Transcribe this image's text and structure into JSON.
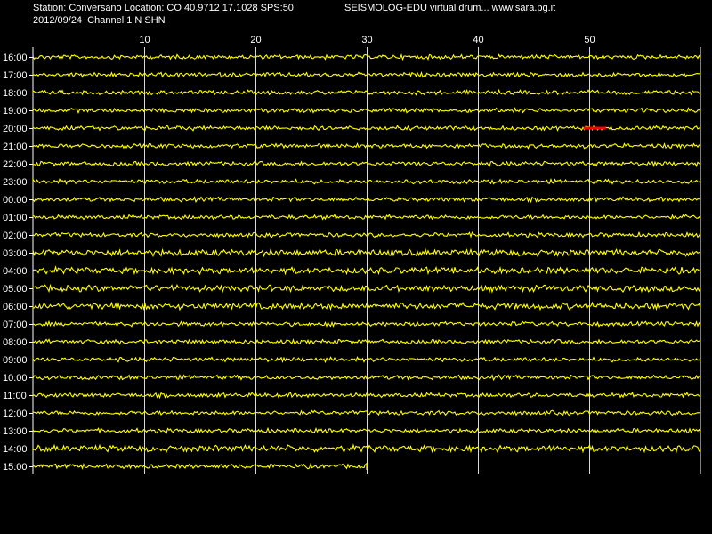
{
  "header": {
    "station_line": "Station: Conversano Location: CO 40.9712 17.1028 SPS:50",
    "title": "SEISMOLOG-EDU virtual drum... www.sara.pg.it",
    "date_line": "2012/09/24  Channel 1 N SHN"
  },
  "chart_data": {
    "type": "line",
    "title": "",
    "xlabel": "",
    "ylabel": "",
    "x_unit_hint": "minutes",
    "x_range": [
      0,
      60
    ],
    "x_ticks": [
      10,
      20,
      30,
      40,
      50
    ],
    "x_tick_labels": [
      "10",
      "20",
      "30",
      "40",
      "50"
    ],
    "grid": true,
    "hours": [
      "16:00",
      "17:00",
      "18:00",
      "19:00",
      "20:00",
      "21:00",
      "22:00",
      "23:00",
      "00:00",
      "01:00",
      "02:00",
      "03:00",
      "04:00",
      "05:00",
      "06:00",
      "07:00",
      "08:00",
      "09:00",
      "10:00",
      "11:00",
      "12:00",
      "13:00",
      "14:00",
      "15:00"
    ],
    "row_noise": [
      2,
      2,
      2,
      2,
      2,
      2,
      2,
      2,
      2,
      2,
      2,
      3,
      3,
      3,
      3,
      2,
      2,
      2,
      2,
      2,
      2,
      2,
      3,
      2
    ],
    "last_row_end_minute": 30,
    "trace_color": "#ffff00",
    "grid_color": "#ffffff",
    "background_color": "#000000",
    "marker": {
      "hour": "20:00",
      "start_minute": 49.5,
      "end_minute": 51.5,
      "color": "#ff0000"
    }
  }
}
